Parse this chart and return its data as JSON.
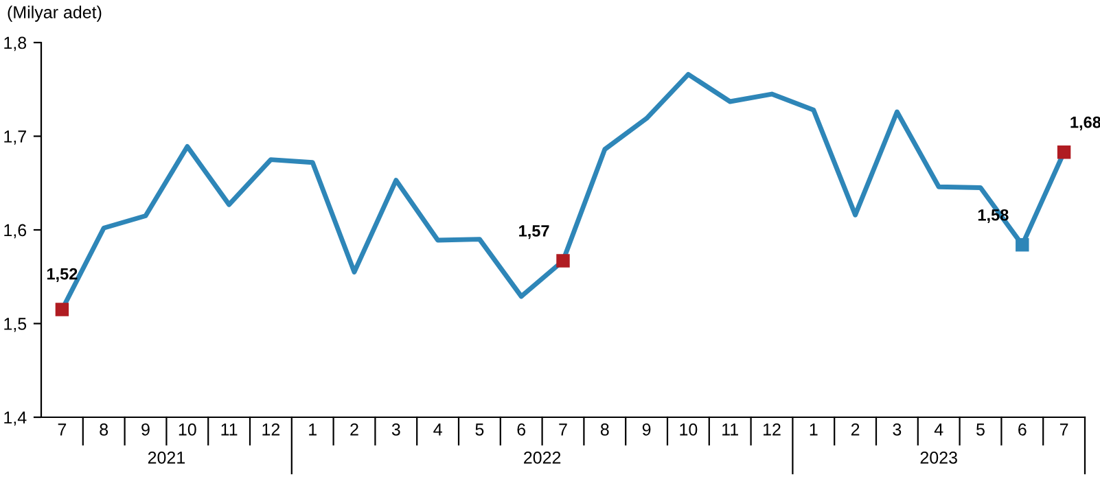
{
  "chart_data": {
    "type": "line",
    "ylabel": "(Milyar adet)",
    "categories": [
      "7",
      "8",
      "9",
      "10",
      "11",
      "12",
      "1",
      "2",
      "3",
      "4",
      "5",
      "6",
      "7",
      "8",
      "9",
      "10",
      "11",
      "12",
      "1",
      "2",
      "3",
      "4",
      "5",
      "6",
      "7"
    ],
    "series": [
      {
        "color": "#2e86b8",
        "line_style": "solid",
        "values": [
          1.515,
          1.602,
          1.615,
          1.689,
          1.627,
          1.675,
          1.672,
          1.555,
          1.653,
          1.589,
          1.59,
          1.529,
          1.567,
          1.686,
          1.719,
          1.766,
          1.737,
          1.745,
          1.728,
          1.616,
          1.726,
          1.646,
          1.645,
          1.584,
          1.683
        ],
        "colors": [
          "#b01c22",
          null,
          null,
          null,
          null,
          null,
          null,
          null,
          null,
          null,
          null,
          null,
          "#b01c22",
          null,
          null,
          null,
          null,
          null,
          null,
          null,
          null,
          null,
          null,
          "#2e86b8",
          "#b01c22"
        ],
        "value_labels": [
          "1,52",
          null,
          null,
          null,
          null,
          null,
          null,
          null,
          null,
          null,
          null,
          null,
          "1,57",
          null,
          null,
          null,
          null,
          null,
          null,
          null,
          null,
          null,
          null,
          "1,58",
          "1,68"
        ]
      }
    ],
    "annotations": [
      "2021",
      "2022",
      "2023"
    ],
    "ylim": [
      1.4,
      1.8
    ],
    "yticks": [
      {
        "value": 1.4,
        "label": "1,4"
      },
      {
        "value": 1.5,
        "label": "1,5"
      },
      {
        "value": 1.6,
        "label": "1,6"
      },
      {
        "value": 1.7,
        "label": "1,7"
      },
      {
        "value": 1.8,
        "label": "1,8"
      }
    ],
    "grid": false,
    "legend": false
  }
}
